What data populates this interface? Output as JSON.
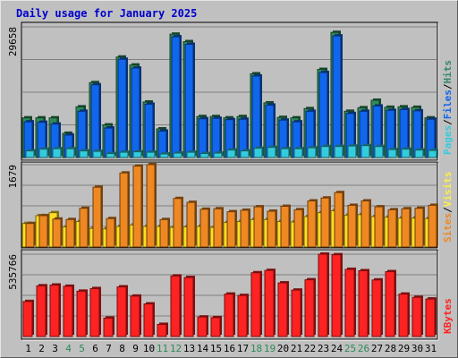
{
  "chart_data": [
    {
      "type": "bar",
      "title": "Daily usage for January 2025",
      "max_label": "29658",
      "ylim": [
        0,
        29658
      ],
      "grid": true,
      "legend": [
        {
          "text": "Pages",
          "color": "#33ccdd"
        },
        {
          "text": "/",
          "color": "#000000"
        },
        {
          "text": "Files",
          "color": "#1166ee"
        },
        {
          "text": "/",
          "color": "#000000"
        },
        {
          "text": "Hits",
          "color": "#338866"
        }
      ],
      "series": [
        {
          "name": "Hits",
          "color": "#2e8b57",
          "values": [
            9000,
            9000,
            9000,
            5500,
            11500,
            17000,
            7400,
            22800,
            21000,
            12600,
            6500,
            28000,
            26300,
            9300,
            9300,
            9000,
            9300,
            19000,
            12400,
            9100,
            9000,
            11100,
            20000,
            28400,
            10500,
            11300,
            13000,
            11400,
            11500,
            11400,
            9000
          ]
        },
        {
          "name": "Files",
          "color": "#1166ee",
          "values": [
            8100,
            8000,
            7600,
            5100,
            10500,
            16500,
            6700,
            22300,
            20300,
            12100,
            6000,
            27400,
            25700,
            8800,
            8900,
            8600,
            8700,
            18500,
            11900,
            8500,
            8100,
            10500,
            19300,
            27600,
            10000,
            10500,
            11700,
            10700,
            10900,
            10600,
            8700
          ]
        },
        {
          "name": "Pages",
          "color": "#33ccdd",
          "values": [
            1500,
            1900,
            2000,
            2000,
            1500,
            1400,
            900,
            1200,
            1300,
            1200,
            800,
            1000,
            1200,
            900,
            1000,
            1700,
            1500,
            2100,
            2300,
            2000,
            2000,
            2200,
            2500,
            2500,
            2600,
            2700,
            2500,
            1800,
            1900,
            1700,
            1600
          ]
        }
      ]
    },
    {
      "type": "bar",
      "max_label": "1679",
      "ylim": [
        0,
        1679
      ],
      "grid": true,
      "legend": [
        {
          "text": "Sites",
          "color": "#ee8822"
        },
        {
          "text": "/",
          "color": "#000000"
        },
        {
          "text": "Visits",
          "color": "#ffee44"
        }
      ],
      "series": [
        {
          "name": "Visits",
          "color": "#ffdd22",
          "values": [
            480,
            640,
            700,
            410,
            520,
            380,
            370,
            420,
            450,
            420,
            420,
            400,
            410,
            420,
            400,
            500,
            520,
            560,
            560,
            520,
            510,
            620,
            700,
            740,
            650,
            660,
            620,
            610,
            590,
            590,
            580
          ]
        },
        {
          "name": "Sites",
          "color": "#ee8822",
          "values": [
            480,
            640,
            570,
            560,
            790,
            1220,
            580,
            1510,
            1650,
            1680,
            560,
            990,
            910,
            770,
            780,
            720,
            750,
            820,
            730,
            830,
            760,
            940,
            1000,
            1110,
            850,
            940,
            820,
            760,
            780,
            790,
            850
          ]
        }
      ]
    },
    {
      "type": "bar",
      "max_label": "535766",
      "ylim": [
        0,
        535766
      ],
      "grid": true,
      "legend": [
        {
          "text": "KBytes",
          "color": "#ff2222"
        }
      ],
      "series": [
        {
          "name": "KBytes",
          "color": "#ff2222",
          "values": [
            228000,
            330000,
            335000,
            327000,
            295000,
            312000,
            120000,
            323000,
            263000,
            212000,
            79000,
            394000,
            384000,
            127000,
            123000,
            276000,
            267000,
            415000,
            430000,
            349000,
            302000,
            369000,
            535766,
            532000,
            437000,
            428000,
            368000,
            422000,
            276000,
            255000,
            244000
          ]
        }
      ]
    }
  ],
  "days": [
    "1",
    "2",
    "3",
    "4",
    "5",
    "6",
    "7",
    "8",
    "9",
    "10",
    "11",
    "12",
    "13",
    "14",
    "15",
    "16",
    "17",
    "18",
    "19",
    "20",
    "21",
    "22",
    "23",
    "24",
    "25",
    "26",
    "27",
    "28",
    "29",
    "30",
    "31"
  ],
  "weekend_days": [
    "4",
    "5",
    "11",
    "12",
    "18",
    "19",
    "25",
    "26"
  ],
  "weekend_color": "#2e8b57",
  "weekday_color": "#000000"
}
